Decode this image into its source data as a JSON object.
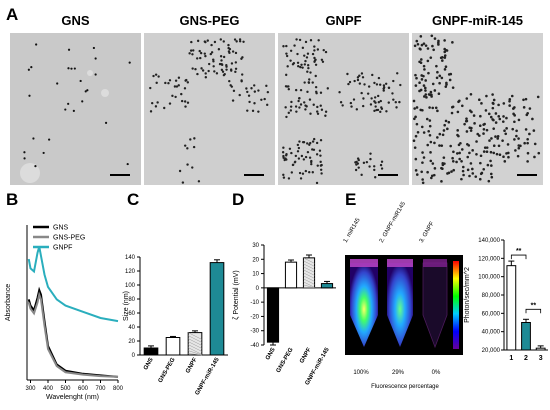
{
  "panel_labels": {
    "a": "A",
    "b": "B",
    "c": "C",
    "d": "D",
    "e": "E"
  },
  "tem_titles": [
    "GNS",
    "GNS-PEG",
    "GNPF",
    "GNPF-miR-145"
  ],
  "chart_data": [
    {
      "panel": "B",
      "type": "line",
      "ylabel": "Absorbance",
      "xlabel": "Wavelenght (nm)",
      "x_ticks": [
        "300",
        "400",
        "500",
        "600",
        "700",
        "800"
      ],
      "xlim": [
        280,
        800
      ],
      "series": [
        {
          "name": "GNS",
          "color": "#000000",
          "x": [
            290,
            300,
            320,
            340,
            350,
            360,
            380,
            400,
            450,
            500,
            600,
            700,
            800
          ],
          "y": [
            0.52,
            0.48,
            0.45,
            0.53,
            0.58,
            0.55,
            0.38,
            0.22,
            0.1,
            0.06,
            0.04,
            0.03,
            0.02
          ]
        },
        {
          "name": "GNS-PEG",
          "color": "#888888",
          "x": [
            290,
            300,
            320,
            340,
            350,
            360,
            380,
            400,
            450,
            500,
            600,
            700,
            800
          ],
          "y": [
            0.5,
            0.46,
            0.43,
            0.5,
            0.55,
            0.52,
            0.35,
            0.2,
            0.09,
            0.05,
            0.035,
            0.025,
            0.02
          ]
        },
        {
          "name": "GNPF",
          "color": "#2aaebd",
          "x": [
            290,
            300,
            320,
            340,
            350,
            360,
            380,
            400,
            450,
            500,
            600,
            700,
            800
          ],
          "y": [
            0.78,
            0.72,
            0.7,
            0.82,
            0.86,
            0.8,
            0.68,
            0.6,
            0.52,
            0.48,
            0.44,
            0.4,
            0.38
          ]
        }
      ]
    },
    {
      "panel": "C",
      "type": "bar",
      "ylabel": "Size (nm)",
      "ylim": [
        0,
        140
      ],
      "y_ticks": [
        "0",
        "20",
        "40",
        "60",
        "80",
        "100",
        "120",
        "140"
      ],
      "categories": [
        "GNS",
        "GNS-PEG",
        "GNPF",
        "GNPF-miR-145"
      ],
      "values": [
        10,
        25,
        32,
        132
      ],
      "errors": [
        3,
        1.5,
        2.5,
        4
      ]
    },
    {
      "panel": "D",
      "type": "bar",
      "ylabel": "ζ Potential  (mV)",
      "ylim": [
        -40,
        30
      ],
      "y_ticks": [
        "-40",
        "-30",
        "-20",
        "-10",
        "0",
        "10",
        "20",
        "30"
      ],
      "categories": [
        "GNS",
        "GNS-PEG",
        "GNPF",
        "GNPF-miR-145"
      ],
      "values": [
        -38,
        18,
        21,
        3
      ],
      "errors": [
        2,
        1.5,
        2,
        1.5
      ]
    },
    {
      "panel": "E",
      "type": "bar",
      "ylabel": "Photon/sec/mm^2",
      "ylim": [
        20000,
        140000
      ],
      "y_ticks": [
        "20,000",
        "40,000",
        "60,000",
        "80,000",
        "100,000",
        "120,000",
        "140,000"
      ],
      "categories": [
        "1",
        "2",
        "3"
      ],
      "values": [
        112000,
        50000,
        22000
      ],
      "errors": [
        5000,
        3500,
        2500
      ],
      "significance": [
        "**",
        "**"
      ]
    }
  ],
  "fluorescence": {
    "tube_labels": [
      "1. miR145",
      "2. GNPF-miR145",
      "3. GNPF"
    ],
    "percentages": [
      "100%",
      "29%",
      "0%"
    ],
    "caption": "Fluorescence percentage"
  },
  "colors": {
    "black": "#000000",
    "white": "#ffffff",
    "teal": "#1e8a95",
    "gnpf_line": "#2aaebd"
  }
}
